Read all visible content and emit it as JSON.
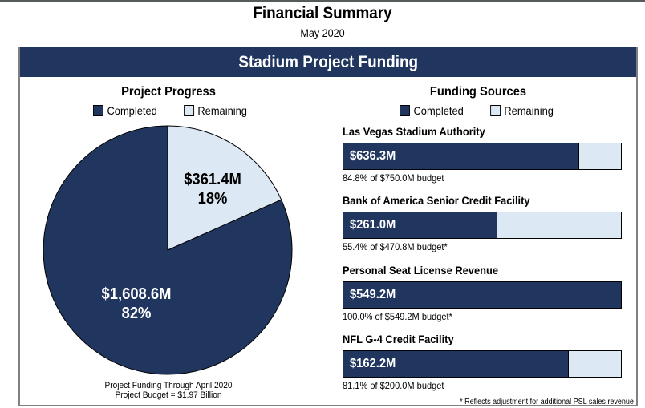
{
  "header": {
    "title": "Financial Summary",
    "subtitle": "May 2020"
  },
  "panel": {
    "title": "Stadium Project Funding",
    "footnote": "* Reflects adjustment for additional PSL sales revenue"
  },
  "colors": {
    "completed": "#21365f",
    "remaining": "#dde8f5",
    "header_bg": "#21365f"
  },
  "chart_data": [
    {
      "type": "pie",
      "title": "Project Progress",
      "legend": [
        "Completed",
        "Remaining"
      ],
      "legend_placement": "top",
      "slices": [
        {
          "name": "Completed",
          "value": 1608.6,
          "value_label": "$1,608.6M",
          "percent_label": "82%"
        },
        {
          "name": "Remaining",
          "value": 361.4,
          "value_label": "$361.4M",
          "percent_label": "18%"
        }
      ],
      "footer": [
        "Project Funding Through April 2020",
        "Project Budget = $1.97 Billion"
      ]
    },
    {
      "type": "bar",
      "orientation": "horizontal",
      "stacked": true,
      "title": "Funding Sources",
      "legend": [
        "Completed",
        "Remaining"
      ],
      "legend_placement": "top",
      "items": [
        {
          "name": "Las Vegas Stadium Authority",
          "completed": 636.3,
          "budget": 750.0,
          "percent": 84.8,
          "value_label": "$636.3M",
          "note": "84.8% of $750.0M budget"
        },
        {
          "name": "Bank of America Senior Credit Facility",
          "completed": 261.0,
          "budget": 470.8,
          "percent": 55.4,
          "value_label": "$261.0M",
          "note": "55.4% of $470.8M budget*"
        },
        {
          "name": "Personal Seat License Revenue",
          "completed": 549.2,
          "budget": 549.2,
          "percent": 100.0,
          "value_label": "$549.2M",
          "note": "100.0% of $549.2M budget*"
        },
        {
          "name": "NFL G-4 Credit Facility",
          "completed": 162.2,
          "budget": 200.0,
          "percent": 81.1,
          "value_label": "$162.2M",
          "note": "81.1% of $200.0M budget"
        }
      ]
    }
  ]
}
